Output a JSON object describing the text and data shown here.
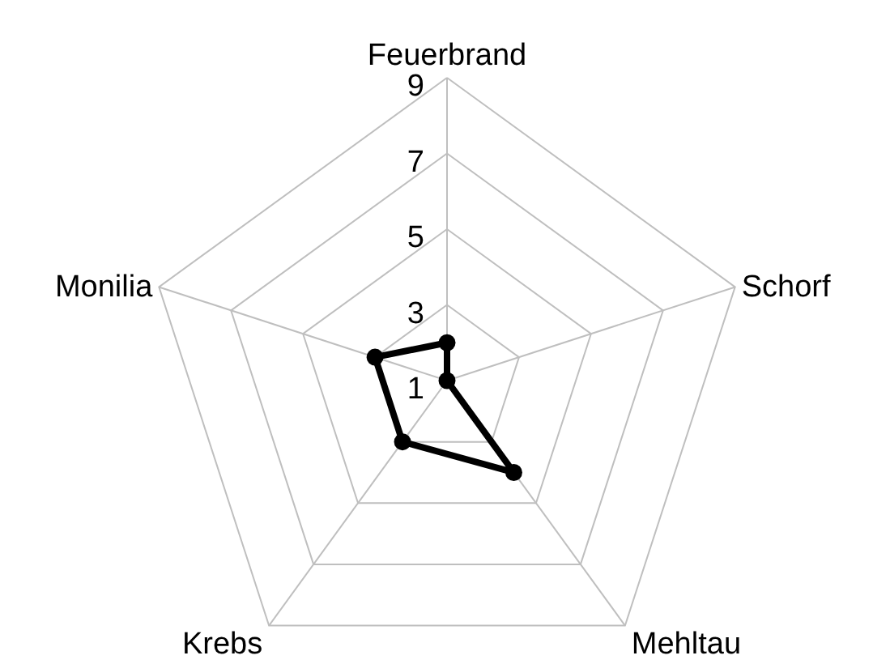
{
  "chart_data": {
    "type": "radar",
    "categories": [
      "Feuerbrand",
      "Schorf",
      "Mehltau",
      "Krebs",
      "Monilia"
    ],
    "series": [
      {
        "color": "#000000",
        "values": [
          2,
          1,
          4,
          3,
          3
        ]
      }
    ],
    "ylim": [
      1,
      9
    ],
    "yticks": [
      1,
      3,
      5,
      7,
      9
    ],
    "grid": true,
    "marker": "circle",
    "line_style": "solid"
  }
}
